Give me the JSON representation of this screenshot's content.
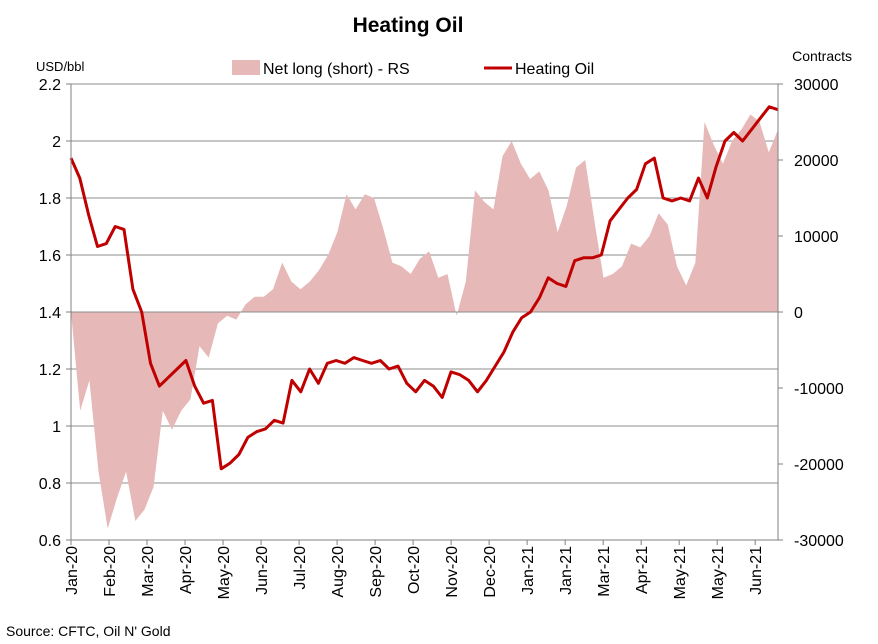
{
  "chart_data": {
    "type": "line",
    "title": "Heating Oil",
    "y_left_unit": "USD/bbl",
    "y_right_unit": "Contracts",
    "source": "Source: CFTC, Oil N' Gold",
    "y_left_range": [
      0.6,
      2.2
    ],
    "y_left_ticks": [
      "0.6",
      "0.8",
      "1",
      "1.2",
      "1.4",
      "1.6",
      "1.8",
      "2",
      "2.2"
    ],
    "y_right_range": [
      -30000,
      30000
    ],
    "y_right_ticks": [
      "-30000",
      "-20000",
      "-10000",
      "0",
      "10000",
      "20000",
      "30000"
    ],
    "x_tick_labels": [
      "Jan-20",
      "Feb-20",
      "Mar-20",
      "Apr-20",
      "May-20",
      "Jun-20",
      "Jul-20",
      "Aug-20",
      "Sep-20",
      "Oct-20",
      "Nov-20",
      "Dec-20",
      "Jan-21",
      "Jan-21",
      "Mar-21",
      "Apr-21",
      "May-21",
      "May-21",
      "Jun-21"
    ],
    "grid": "horizontal",
    "legend_position": "top",
    "series": [
      {
        "name": "Net long (short) - RS",
        "kind": "area",
        "axis": "right",
        "color": "#e6b9b8",
        "values": [
          0,
          -13000,
          -9000,
          -21000,
          -28500,
          -24500,
          -21000,
          -27500,
          -26000,
          -23000,
          -13000,
          -15500,
          -13000,
          -11500,
          -4500,
          -6000,
          -1500,
          -500,
          -1000,
          1000,
          2000,
          2000,
          3000,
          6500,
          4000,
          3000,
          4000,
          5500,
          7500,
          10500,
          15500,
          13500,
          15500,
          15000,
          11000,
          6500,
          6000,
          5000,
          7000,
          8000,
          4500,
          5000,
          -500,
          4000,
          16000,
          14500,
          13500,
          20500,
          22500,
          19500,
          17500,
          18500,
          16000,
          10500,
          14000,
          19000,
          20000,
          12000,
          4500,
          5000,
          6000,
          9000,
          8500,
          10000,
          13000,
          11500,
          6000,
          3500,
          6500,
          25000,
          22000,
          19500,
          22500,
          24000,
          26000,
          25000,
          21000,
          24000
        ],
        "values_last": 24000
      },
      {
        "name": "Heating Oil",
        "kind": "line",
        "axis": "left",
        "color": "#c00000",
        "values": [
          1.94,
          1.87,
          1.74,
          1.63,
          1.64,
          1.7,
          1.69,
          1.48,
          1.4,
          1.22,
          1.14,
          1.17,
          1.2,
          1.23,
          1.14,
          1.08,
          1.09,
          0.85,
          0.87,
          0.9,
          0.96,
          0.98,
          0.99,
          1.02,
          1.01,
          1.16,
          1.12,
          1.2,
          1.15,
          1.22,
          1.23,
          1.22,
          1.24,
          1.23,
          1.22,
          1.23,
          1.2,
          1.21,
          1.15,
          1.12,
          1.16,
          1.14,
          1.1,
          1.19,
          1.18,
          1.16,
          1.12,
          1.16,
          1.21,
          1.26,
          1.33,
          1.38,
          1.4,
          1.45,
          1.52,
          1.5,
          1.49,
          1.58,
          1.59,
          1.59,
          1.6,
          1.72,
          1.76,
          1.8,
          1.83,
          1.92,
          1.94,
          1.8,
          1.79,
          1.8,
          1.79,
          1.87,
          1.8,
          1.91,
          2.0,
          2.03,
          2.0,
          2.04,
          2.08,
          2.12,
          2.11
        ]
      }
    ]
  }
}
